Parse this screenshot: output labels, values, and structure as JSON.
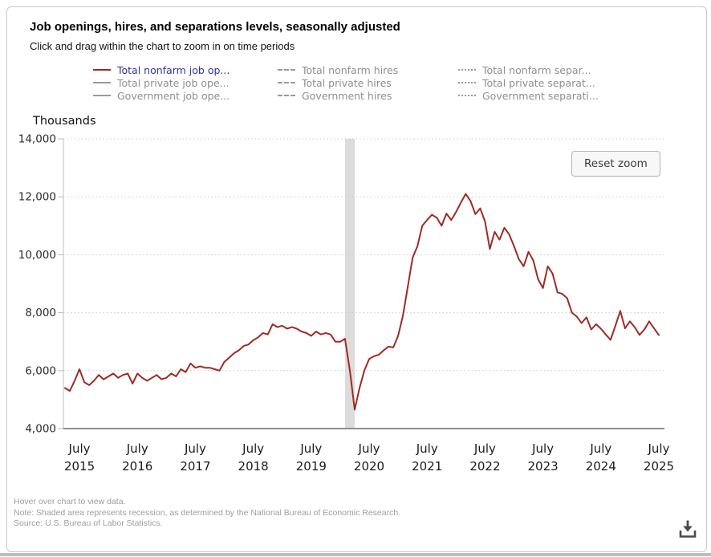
{
  "header": {
    "title": "Job openings, hires, and separations levels, seasonally adjusted",
    "subtitle": "Click and drag within the chart to zoom in on time periods"
  },
  "legend": {
    "items": [
      {
        "label": "Total nonfarm job op...",
        "line": "solid",
        "marker_color": "#9e2b25",
        "text_color": "#3333a2",
        "active": true
      },
      {
        "label": "Total private job ope...",
        "line": "solid",
        "marker_color": "#9a9a9a",
        "text_color": "#8f8f8f",
        "active": false
      },
      {
        "label": "Government job ope...",
        "line": "solid",
        "marker_color": "#9a9a9a",
        "text_color": "#8f8f8f",
        "active": false
      },
      {
        "label": "Total nonfarm hires",
        "line": "dashed",
        "marker_color": "#9a9a9a",
        "text_color": "#8f8f8f",
        "active": false
      },
      {
        "label": "Total private hires",
        "line": "dashed",
        "marker_color": "#9a9a9a",
        "text_color": "#8f8f8f",
        "active": false
      },
      {
        "label": "Government hires",
        "line": "dashed",
        "marker_color": "#9a9a9a",
        "text_color": "#8f8f8f",
        "active": false
      },
      {
        "label": "Total nonfarm separ...",
        "line": "dotted",
        "marker_color": "#9a9a9a",
        "text_color": "#8f8f8f",
        "active": false
      },
      {
        "label": "Total private separat...",
        "line": "dotted",
        "marker_color": "#9a9a9a",
        "text_color": "#8f8f8f",
        "active": false
      },
      {
        "label": "Government separati...",
        "line": "dotted",
        "marker_color": "#9a9a9a",
        "text_color": "#8f8f8f",
        "active": false
      }
    ]
  },
  "chart": {
    "unit_label": "Thousands",
    "reset_zoom_label": "Reset zoom",
    "line_color": "#9e2b25",
    "recession_band_color": "#dcdcdc",
    "grid_color": "#c9c9c9",
    "y_axis_color": "#b9bfca",
    "x_axis_color": "#8f8f8f"
  },
  "chart_data": {
    "type": "line",
    "title": "Job openings, hires, and separations levels, seasonally adjusted",
    "xlabel": "",
    "ylabel": "Thousands",
    "ylim": [
      4000,
      14000
    ],
    "grid": "horizontal-dotted",
    "legend_position": "top",
    "yticks": [
      {
        "value": 4000,
        "label": "4,000"
      },
      {
        "value": 6000,
        "label": "6,000"
      },
      {
        "value": 8000,
        "label": "8,000"
      },
      {
        "value": 10000,
        "label": "10,000"
      },
      {
        "value": 12000,
        "label": "12,000"
      },
      {
        "value": 14000,
        "label": "14,000"
      }
    ],
    "x_tick_labels": [
      {
        "month": "July",
        "year": "2015",
        "index": 3
      },
      {
        "month": "July",
        "year": "2016",
        "index": 15
      },
      {
        "month": "July",
        "year": "2017",
        "index": 27
      },
      {
        "month": "July",
        "year": "2018",
        "index": 39
      },
      {
        "month": "July",
        "year": "2019",
        "index": 51
      },
      {
        "month": "July",
        "year": "2020",
        "index": 63
      },
      {
        "month": "July",
        "year": "2021",
        "index": 75
      },
      {
        "month": "July",
        "year": "2022",
        "index": 87
      },
      {
        "month": "July",
        "year": "2023",
        "index": 99
      },
      {
        "month": "July",
        "year": "2024",
        "index": 111
      },
      {
        "month": "July",
        "year": "2025",
        "index": 123
      }
    ],
    "recession_band": {
      "start_index": 58,
      "end_index": 60,
      "note": "recession (NBER)"
    },
    "series": [
      {
        "name": "Total nonfarm job op...",
        "color": "#9e2b25",
        "visible": true,
        "frequency": "monthly",
        "values": [
          5400,
          5300,
          5650,
          6050,
          5600,
          5500,
          5650,
          5850,
          5700,
          5800,
          5900,
          5750,
          5850,
          5900,
          5550,
          5900,
          5750,
          5650,
          5750,
          5850,
          5700,
          5750,
          5900,
          5800,
          6050,
          5950,
          6250,
          6100,
          6150,
          6100,
          6100,
          6050,
          6000,
          6300,
          6450,
          6600,
          6700,
          6850,
          6900,
          7050,
          7150,
          7300,
          7250,
          7600,
          7500,
          7550,
          7450,
          7500,
          7450,
          7350,
          7300,
          7200,
          7350,
          7250,
          7300,
          7250,
          7000,
          7000,
          7100,
          6000,
          4650,
          5400,
          6000,
          6400,
          6500,
          6550,
          6700,
          6830,
          6800,
          7200,
          7900,
          8900,
          9900,
          10300,
          11000,
          11200,
          11380,
          11280,
          11000,
          11420,
          11200,
          11475,
          11800,
          12100,
          11850,
          11400,
          11600,
          11150,
          10200,
          10790,
          10520,
          10930,
          10700,
          10300,
          9850,
          9600,
          10100,
          9800,
          9150,
          8850,
          9600,
          9350,
          8700,
          8650,
          8500,
          8000,
          7870,
          7640,
          7840,
          7420,
          7600,
          7450,
          7250,
          7060,
          7550,
          8060,
          7460,
          7700,
          7500,
          7230,
          7420,
          7700,
          7460,
          7230
        ]
      },
      {
        "name": "Total private job ope...",
        "visible": false
      },
      {
        "name": "Government job ope...",
        "visible": false
      },
      {
        "name": "Total nonfarm hires",
        "visible": false
      },
      {
        "name": "Total private hires",
        "visible": false
      },
      {
        "name": "Government hires",
        "visible": false
      },
      {
        "name": "Total nonfarm separ...",
        "visible": false
      },
      {
        "name": "Total private separat...",
        "visible": false
      },
      {
        "name": "Government separati...",
        "visible": false
      }
    ]
  },
  "footer": {
    "line1": "Hover over chart to view data.",
    "line2": "Note: Shaded area represents recession, as determined by the National Bureau of Economic Research.",
    "line3": "Source: U.S. Bureau of Labor Statistics."
  }
}
